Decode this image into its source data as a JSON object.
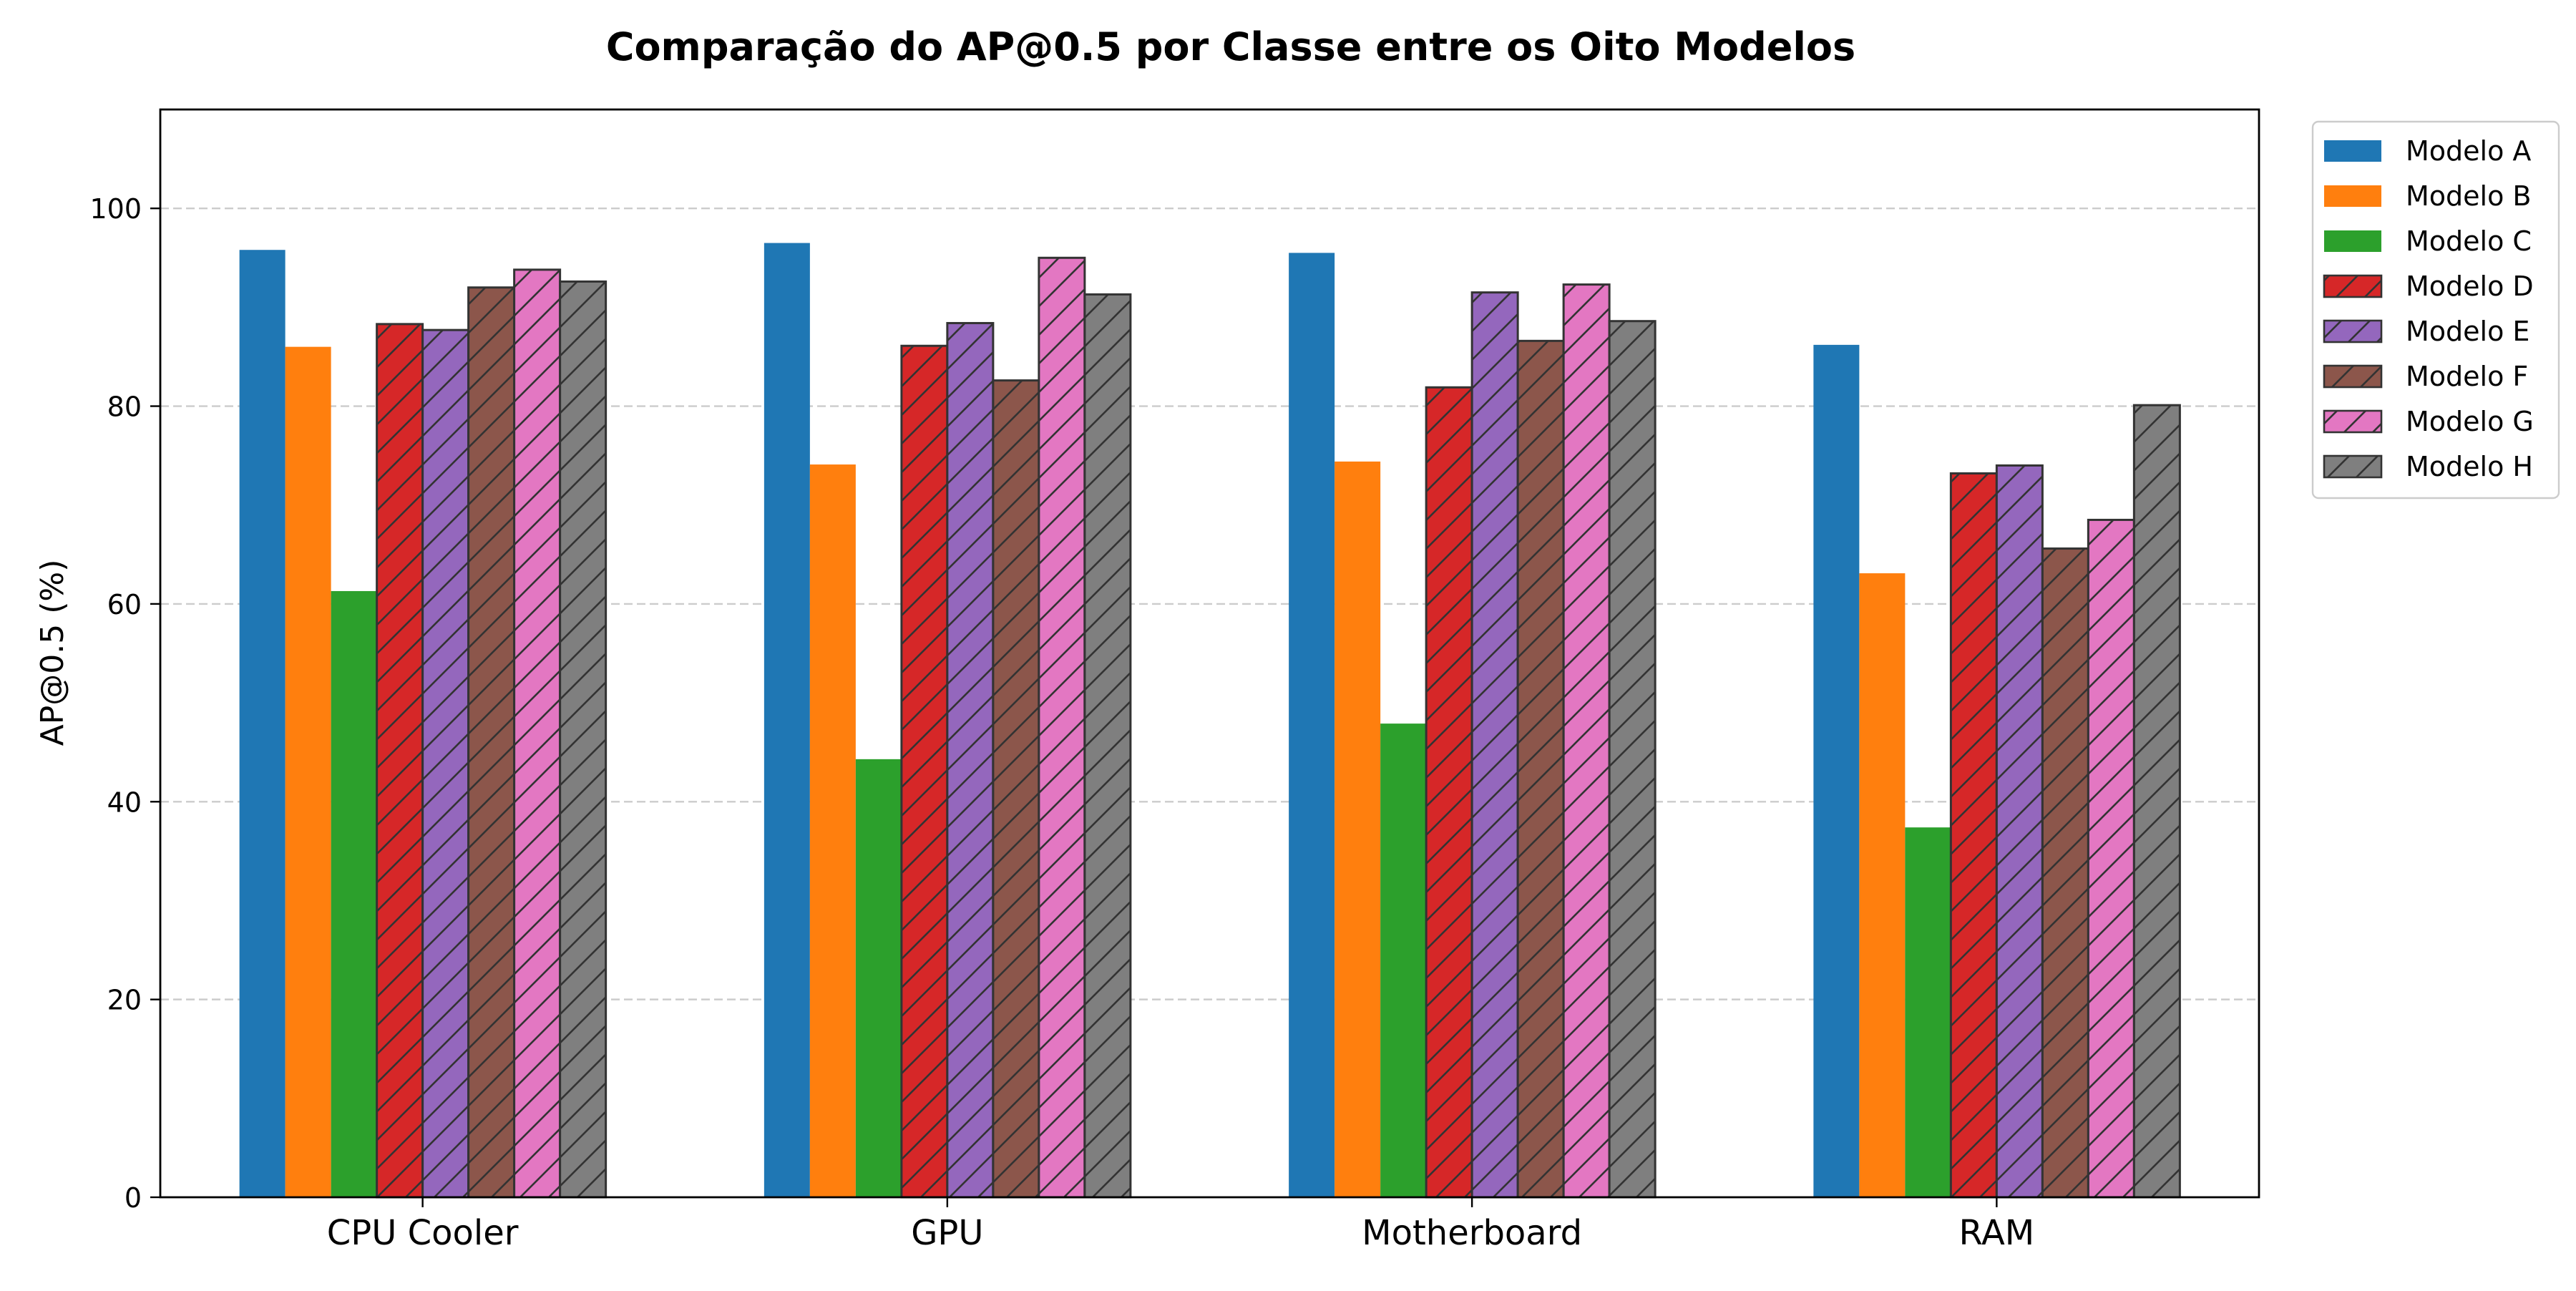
{
  "chart_data": {
    "type": "bar",
    "title": "Comparação do AP@0.5 por Classe entre os Oito Modelos",
    "xlabel": "",
    "ylabel": "AP@0.5 (%)",
    "ylim": [
      0,
      110
    ],
    "yticks": [
      0,
      20,
      40,
      60,
      80,
      100
    ],
    "grid": "y-dashed",
    "legend_position": "outside top-right",
    "categories": [
      "CPU Cooler",
      "GPU",
      "Motherboard",
      "RAM"
    ],
    "series": [
      {
        "name": "Modelo A",
        "color": "#1f77b4",
        "hatched": false,
        "values": [
          95.8,
          96.5,
          95.5,
          86.2
        ]
      },
      {
        "name": "Modelo B",
        "color": "#ff7f0e",
        "hatched": false,
        "values": [
          86.0,
          74.1,
          74.4,
          63.1
        ]
      },
      {
        "name": "Modelo C",
        "color": "#2ca02c",
        "hatched": false,
        "values": [
          61.3,
          44.3,
          47.9,
          37.4
        ]
      },
      {
        "name": "Modelo D",
        "color": "#d62728",
        "hatched": true,
        "values": [
          88.3,
          86.1,
          81.9,
          73.2
        ]
      },
      {
        "name": "Modelo E",
        "color": "#9467bd",
        "hatched": true,
        "values": [
          87.7,
          88.4,
          91.5,
          74.0
        ]
      },
      {
        "name": "Modelo F",
        "color": "#8c564b",
        "hatched": true,
        "values": [
          92.0,
          82.6,
          86.6,
          65.6
        ]
      },
      {
        "name": "Modelo G",
        "color": "#e377c2",
        "hatched": true,
        "values": [
          93.8,
          95.0,
          92.3,
          68.5
        ]
      },
      {
        "name": "Modelo H",
        "color": "#7f7f7f",
        "hatched": true,
        "values": [
          92.6,
          91.3,
          88.6,
          80.1
        ]
      }
    ]
  }
}
